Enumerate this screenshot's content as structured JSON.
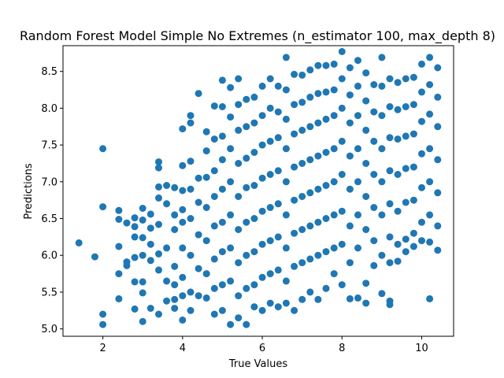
{
  "chart_data": {
    "type": "scatter",
    "title": "Random Forest Model Simple No Extremes (n_estimator 100, max_depth 8)",
    "xlabel": "True Values",
    "ylabel": "Predictions",
    "xlim": [
      1.0,
      10.8
    ],
    "ylim": [
      4.9,
      8.85
    ],
    "x_ticks": [
      2,
      4,
      6,
      8,
      10
    ],
    "y_ticks": [
      5.0,
      5.5,
      6.0,
      6.5,
      7.0,
      7.5,
      8.0,
      8.5
    ],
    "x_tick_labels": [
      "2",
      "4",
      "6",
      "8",
      "10"
    ],
    "y_tick_labels": [
      "5.0",
      "5.5",
      "6.0",
      "6.5",
      "7.0",
      "7.5",
      "8.0",
      "8.5"
    ],
    "grid": false,
    "marker_color": "#1f77b4",
    "series": [
      {
        "points": [
          [
            1.4,
            6.17
          ],
          [
            1.8,
            5.98
          ],
          [
            2.0,
            7.45
          ],
          [
            2.0,
            6.66
          ],
          [
            2.0,
            5.2
          ],
          [
            2.0,
            5.06
          ],
          [
            2.4,
            6.61
          ],
          [
            2.4,
            6.49
          ],
          [
            2.4,
            6.12
          ],
          [
            2.4,
            5.75
          ],
          [
            2.4,
            5.41
          ],
          [
            2.6,
            6.44
          ],
          [
            2.6,
            5.91
          ],
          [
            2.6,
            5.86
          ],
          [
            2.8,
            6.51
          ],
          [
            2.8,
            6.39
          ],
          [
            2.8,
            6.25
          ],
          [
            2.8,
            5.97
          ],
          [
            2.8,
            5.64
          ],
          [
            2.8,
            5.27
          ],
          [
            3.0,
            6.64
          ],
          [
            3.0,
            6.48
          ],
          [
            3.0,
            6.24
          ],
          [
            3.0,
            6.0
          ],
          [
            3.0,
            5.64
          ],
          [
            3.0,
            5.49
          ],
          [
            3.0,
            5.1
          ],
          [
            3.2,
            6.56
          ],
          [
            3.2,
            6.37
          ],
          [
            3.2,
            6.15
          ],
          [
            3.2,
            5.93
          ],
          [
            3.2,
            5.28
          ],
          [
            3.4,
            7.27
          ],
          [
            3.4,
            7.19
          ],
          [
            3.4,
            6.93
          ],
          [
            3.4,
            6.78
          ],
          [
            3.4,
            6.42
          ],
          [
            3.4,
            6.02
          ],
          [
            3.4,
            5.8
          ],
          [
            3.4,
            5.2
          ],
          [
            3.6,
            6.95
          ],
          [
            3.6,
            6.7
          ],
          [
            3.6,
            6.1
          ],
          [
            3.6,
            5.65
          ],
          [
            3.6,
            5.38
          ],
          [
            3.8,
            6.92
          ],
          [
            3.8,
            6.55
          ],
          [
            3.8,
            6.35
          ],
          [
            3.8,
            5.85
          ],
          [
            3.8,
            5.6
          ],
          [
            3.8,
            5.4
          ],
          [
            3.8,
            5.28
          ],
          [
            4.0,
            7.72
          ],
          [
            4.0,
            7.22
          ],
          [
            4.0,
            6.88
          ],
          [
            4.0,
            6.62
          ],
          [
            4.0,
            6.45
          ],
          [
            4.0,
            6.1
          ],
          [
            4.0,
            5.7
          ],
          [
            4.0,
            5.45
          ],
          [
            4.0,
            5.12
          ],
          [
            4.2,
            7.9
          ],
          [
            4.2,
            7.8
          ],
          [
            4.2,
            7.28
          ],
          [
            4.2,
            6.9
          ],
          [
            4.2,
            6.5
          ],
          [
            4.2,
            6.0
          ],
          [
            4.2,
            5.5
          ],
          [
            4.2,
            5.25
          ],
          [
            4.4,
            8.2
          ],
          [
            4.4,
            7.05
          ],
          [
            4.4,
            6.72
          ],
          [
            4.4,
            6.28
          ],
          [
            4.4,
            5.82
          ],
          [
            4.4,
            5.45
          ],
          [
            4.6,
            7.68
          ],
          [
            4.6,
            7.42
          ],
          [
            4.6,
            7.06
          ],
          [
            4.6,
            6.65
          ],
          [
            4.6,
            6.2
          ],
          [
            4.6,
            5.75
          ],
          [
            4.6,
            5.42
          ],
          [
            4.8,
            8.03
          ],
          [
            4.8,
            7.58
          ],
          [
            4.8,
            7.15
          ],
          [
            4.8,
            6.8
          ],
          [
            4.8,
            6.4
          ],
          [
            4.8,
            5.95
          ],
          [
            4.8,
            5.55
          ],
          [
            4.8,
            5.2
          ],
          [
            5.0,
            8.38
          ],
          [
            5.0,
            8.02
          ],
          [
            5.0,
            7.62
          ],
          [
            5.0,
            7.3
          ],
          [
            5.0,
            6.9
          ],
          [
            5.0,
            6.45
          ],
          [
            5.0,
            6.05
          ],
          [
            5.0,
            5.6
          ],
          [
            5.0,
            5.25
          ],
          [
            5.2,
            8.28
          ],
          [
            5.2,
            7.88
          ],
          [
            5.2,
            7.45
          ],
          [
            5.2,
            7.0
          ],
          [
            5.2,
            6.55
          ],
          [
            5.2,
            6.1
          ],
          [
            5.2,
            5.65
          ],
          [
            5.2,
            5.06
          ],
          [
            5.4,
            8.4
          ],
          [
            5.4,
            8.05
          ],
          [
            5.4,
            7.7
          ],
          [
            5.4,
            7.25
          ],
          [
            5.4,
            6.8
          ],
          [
            5.4,
            6.35
          ],
          [
            5.4,
            5.9
          ],
          [
            5.4,
            5.45
          ],
          [
            5.4,
            5.15
          ],
          [
            5.6,
            8.12
          ],
          [
            5.6,
            7.75
          ],
          [
            5.6,
            7.32
          ],
          [
            5.6,
            6.92
          ],
          [
            5.6,
            6.45
          ],
          [
            5.6,
            6.0
          ],
          [
            5.6,
            5.55
          ],
          [
            5.6,
            5.06
          ],
          [
            5.8,
            8.15
          ],
          [
            5.8,
            7.8
          ],
          [
            5.8,
            7.4
          ],
          [
            5.8,
            6.95
          ],
          [
            5.8,
            6.5
          ],
          [
            5.8,
            6.05
          ],
          [
            5.8,
            5.6
          ],
          [
            5.8,
            5.3
          ],
          [
            6.0,
            8.3
          ],
          [
            6.0,
            7.9
          ],
          [
            6.0,
            7.5
          ],
          [
            6.0,
            7.05
          ],
          [
            6.0,
            6.6
          ],
          [
            6.0,
            6.15
          ],
          [
            6.0,
            5.7
          ],
          [
            6.0,
            5.25
          ],
          [
            6.2,
            8.4
          ],
          [
            6.2,
            8.0
          ],
          [
            6.2,
            7.55
          ],
          [
            6.2,
            7.1
          ],
          [
            6.2,
            6.65
          ],
          [
            6.2,
            6.2
          ],
          [
            6.2,
            5.75
          ],
          [
            6.2,
            5.35
          ],
          [
            6.4,
            8.3
          ],
          [
            6.4,
            7.95
          ],
          [
            6.4,
            7.6
          ],
          [
            6.4,
            7.15
          ],
          [
            6.4,
            6.7
          ],
          [
            6.4,
            6.25
          ],
          [
            6.4,
            5.8
          ],
          [
            6.4,
            5.3
          ],
          [
            6.6,
            8.69
          ],
          [
            6.6,
            8.25
          ],
          [
            6.6,
            7.85
          ],
          [
            6.6,
            7.45
          ],
          [
            6.6,
            7.0
          ],
          [
            6.6,
            6.55
          ],
          [
            6.6,
            6.1
          ],
          [
            6.6,
            5.65
          ],
          [
            6.6,
            5.35
          ],
          [
            6.8,
            8.46
          ],
          [
            6.8,
            8.05
          ],
          [
            6.8,
            7.65
          ],
          [
            6.8,
            7.2
          ],
          [
            6.8,
            6.75
          ],
          [
            6.8,
            6.3
          ],
          [
            6.8,
            5.85
          ],
          [
            6.8,
            5.25
          ],
          [
            7.0,
            8.45
          ],
          [
            7.0,
            8.08
          ],
          [
            7.0,
            7.7
          ],
          [
            7.0,
            7.25
          ],
          [
            7.0,
            6.8
          ],
          [
            7.0,
            6.35
          ],
          [
            7.0,
            5.9
          ],
          [
            7.0,
            5.4
          ],
          [
            7.2,
            8.52
          ],
          [
            7.2,
            8.15
          ],
          [
            7.2,
            7.75
          ],
          [
            7.2,
            7.3
          ],
          [
            7.2,
            6.85
          ],
          [
            7.2,
            6.4
          ],
          [
            7.2,
            5.95
          ],
          [
            7.2,
            5.5
          ],
          [
            7.4,
            8.58
          ],
          [
            7.4,
            8.2
          ],
          [
            7.4,
            7.8
          ],
          [
            7.4,
            7.35
          ],
          [
            7.4,
            6.9
          ],
          [
            7.4,
            6.45
          ],
          [
            7.4,
            6.0
          ],
          [
            7.4,
            5.4
          ],
          [
            7.6,
            8.58
          ],
          [
            7.6,
            8.22
          ],
          [
            7.6,
            7.85
          ],
          [
            7.6,
            7.4
          ],
          [
            7.6,
            6.95
          ],
          [
            7.6,
            6.5
          ],
          [
            7.6,
            6.05
          ],
          [
            7.6,
            5.55
          ],
          [
            7.8,
            8.6
          ],
          [
            7.8,
            8.25
          ],
          [
            7.8,
            7.9
          ],
          [
            7.8,
            7.45
          ],
          [
            7.8,
            7.0
          ],
          [
            7.8,
            6.55
          ],
          [
            7.8,
            6.1
          ],
          [
            7.8,
            5.75
          ],
          [
            8.0,
            8.77
          ],
          [
            8.0,
            8.4
          ],
          [
            8.0,
            8.0
          ],
          [
            8.0,
            7.55
          ],
          [
            8.0,
            7.1
          ],
          [
            8.0,
            6.6
          ],
          [
            8.0,
            6.15
          ],
          [
            8.0,
            5.6
          ],
          [
            8.2,
            8.55
          ],
          [
            8.2,
            8.18
          ],
          [
            8.2,
            7.8
          ],
          [
            8.2,
            7.35
          ],
          [
            8.2,
            6.9
          ],
          [
            8.2,
            6.4
          ],
          [
            8.2,
            5.9
          ],
          [
            8.2,
            5.41
          ],
          [
            8.4,
            8.65
          ],
          [
            8.4,
            8.3
          ],
          [
            8.4,
            7.9
          ],
          [
            8.4,
            7.45
          ],
          [
            8.4,
            7.0
          ],
          [
            8.4,
            6.55
          ],
          [
            8.4,
            6.1
          ],
          [
            8.4,
            5.42
          ],
          [
            8.6,
            8.48
          ],
          [
            8.6,
            8.1
          ],
          [
            8.6,
            7.7
          ],
          [
            8.6,
            7.25
          ],
          [
            8.6,
            6.8
          ],
          [
            8.6,
            6.35
          ],
          [
            8.6,
            5.62
          ],
          [
            8.6,
            5.35
          ],
          [
            8.8,
            8.32
          ],
          [
            8.8,
            7.95
          ],
          [
            8.8,
            7.55
          ],
          [
            8.8,
            7.1
          ],
          [
            8.8,
            6.65
          ],
          [
            8.8,
            6.2
          ],
          [
            8.8,
            5.86
          ],
          [
            9.0,
            8.69
          ],
          [
            9.0,
            8.3
          ],
          [
            9.0,
            7.9
          ],
          [
            9.0,
            7.45
          ],
          [
            9.0,
            7.0
          ],
          [
            9.0,
            6.55
          ],
          [
            9.0,
            6.0
          ],
          [
            9.0,
            5.48
          ],
          [
            9.2,
            8.4
          ],
          [
            9.2,
            8.02
          ],
          [
            9.2,
            7.6
          ],
          [
            9.2,
            7.15
          ],
          [
            9.2,
            6.7
          ],
          [
            9.2,
            6.25
          ],
          [
            9.2,
            5.9
          ],
          [
            9.2,
            5.38
          ],
          [
            9.2,
            5.33
          ],
          [
            9.4,
            8.35
          ],
          [
            9.4,
            7.98
          ],
          [
            9.4,
            7.58
          ],
          [
            9.4,
            7.1
          ],
          [
            9.4,
            6.6
          ],
          [
            9.4,
            6.15
          ],
          [
            9.4,
            5.92
          ],
          [
            9.6,
            8.4
          ],
          [
            9.6,
            8.02
          ],
          [
            9.6,
            7.62
          ],
          [
            9.6,
            7.18
          ],
          [
            9.6,
            6.72
          ],
          [
            9.6,
            6.22
          ],
          [
            9.6,
            6.05
          ],
          [
            9.8,
            8.42
          ],
          [
            9.8,
            8.05
          ],
          [
            9.8,
            7.65
          ],
          [
            9.8,
            7.2
          ],
          [
            9.8,
            6.75
          ],
          [
            9.8,
            6.3
          ],
          [
            9.8,
            6.12
          ],
          [
            10.0,
            8.6
          ],
          [
            10.0,
            8.22
          ],
          [
            10.0,
            7.82
          ],
          [
            10.0,
            7.38
          ],
          [
            10.0,
            6.92
          ],
          [
            10.0,
            6.45
          ],
          [
            10.0,
            6.2
          ],
          [
            10.2,
            8.69
          ],
          [
            10.2,
            8.32
          ],
          [
            10.2,
            7.92
          ],
          [
            10.2,
            7.45
          ],
          [
            10.2,
            7.0
          ],
          [
            10.2,
            6.55
          ],
          [
            10.2,
            6.18
          ],
          [
            10.2,
            5.41
          ],
          [
            10.4,
            8.55
          ],
          [
            10.4,
            8.15
          ],
          [
            10.4,
            7.75
          ],
          [
            10.4,
            7.3
          ],
          [
            10.4,
            6.85
          ],
          [
            10.4,
            6.4
          ],
          [
            10.4,
            6.07
          ]
        ]
      }
    ]
  }
}
